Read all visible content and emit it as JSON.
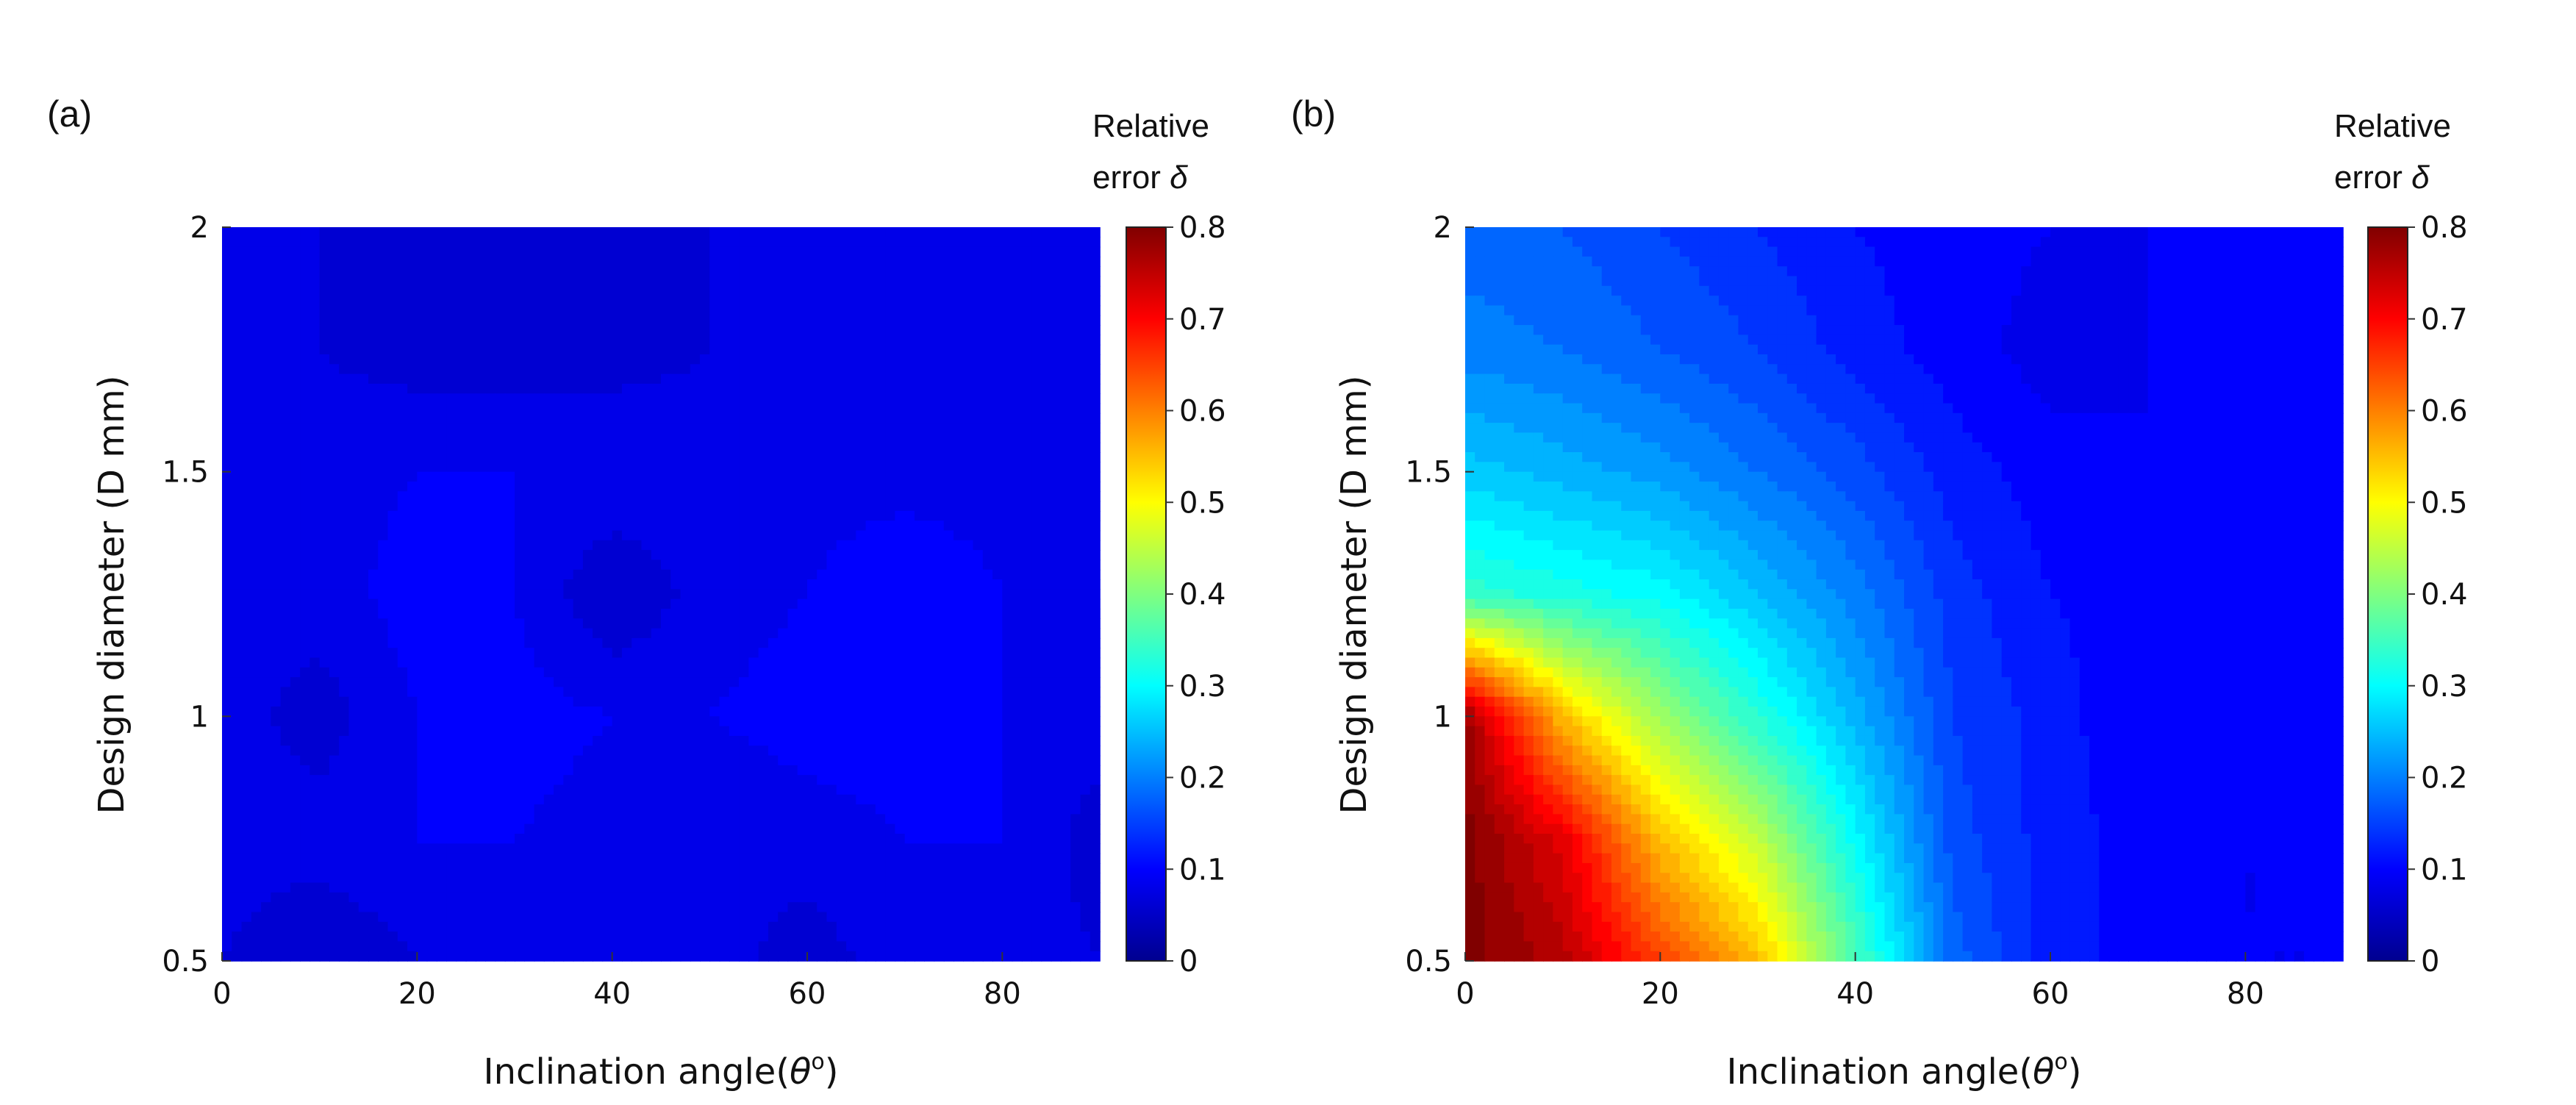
{
  "figure": {
    "colorbar_title_line1": "Relative",
    "colorbar_title_line2": "error ",
    "colorbar_title_symbol": "δ",
    "xlabel_prefix": "Inclination angle(",
    "xlabel_symbol": "θ",
    "xlabel_sup": "o",
    "xlabel_suffix": ")",
    "ylabel": "Design diameter (D mm)"
  },
  "chart_data": [
    {
      "type": "heatmap",
      "panel_label": "(a)",
      "title": "",
      "xlabel": "Inclination angle(θ°)",
      "ylabel": "Design diameter (D mm)",
      "xlim": [
        0,
        90
      ],
      "ylim": [
        0.5,
        2
      ],
      "x_ticks": [
        0,
        20,
        40,
        60,
        80
      ],
      "y_ticks": [
        0.5,
        1,
        1.5,
        2
      ],
      "x_tick_labels": [
        "0",
        "20",
        "40",
        "60",
        "80"
      ],
      "y_tick_labels": [
        "0.5",
        "1",
        "1.5",
        "2"
      ],
      "colorbar": {
        "title": "Relative error δ",
        "range": [
          0,
          0.8
        ],
        "ticks": [
          "0",
          "0.1",
          "0.2",
          "0.3",
          "0.4",
          "0.5",
          "0.6",
          "0.7",
          "0.8"
        ],
        "colormap": "jet"
      },
      "x": [
        0,
        10,
        20,
        30,
        40,
        50,
        60,
        70,
        80,
        90
      ],
      "y": [
        0.5,
        0.75,
        1.0,
        1.25,
        1.5,
        1.75,
        2.0
      ],
      "z": [
        [
          0.07,
          0.05,
          0.07,
          0.08,
          0.07,
          0.08,
          0.06,
          0.08,
          0.08,
          0.07
        ],
        [
          0.08,
          0.08,
          0.09,
          0.09,
          0.08,
          0.07,
          0.08,
          0.09,
          0.09,
          0.06
        ],
        [
          0.08,
          0.06,
          0.09,
          0.1,
          0.09,
          0.09,
          0.1,
          0.1,
          0.09,
          0.08
        ],
        [
          0.08,
          0.08,
          0.1,
          0.09,
          0.05,
          0.08,
          0.09,
          0.11,
          0.09,
          0.08
        ],
        [
          0.08,
          0.08,
          0.09,
          0.09,
          0.09,
          0.08,
          0.08,
          0.08,
          0.08,
          0.08
        ],
        [
          0.08,
          0.07,
          0.06,
          0.06,
          0.06,
          0.07,
          0.08,
          0.08,
          0.08,
          0.08
        ],
        [
          0.07,
          0.07,
          0.07,
          0.07,
          0.07,
          0.07,
          0.07,
          0.07,
          0.07,
          0.07
        ]
      ]
    },
    {
      "type": "heatmap",
      "panel_label": "(b)",
      "title": "",
      "xlabel": "Inclination angle(θ°)",
      "ylabel": "Design diameter (D mm)",
      "xlim": [
        0,
        90
      ],
      "ylim": [
        0.5,
        2
      ],
      "x_ticks": [
        0,
        20,
        40,
        60,
        80
      ],
      "y_ticks": [
        0.5,
        1,
        1.5,
        2
      ],
      "x_tick_labels": [
        "0",
        "20",
        "40",
        "60",
        "80"
      ],
      "y_tick_labels": [
        "0.5",
        "1",
        "1.5",
        "2"
      ],
      "colorbar": {
        "title": "Relative error δ",
        "range": [
          0,
          0.8
        ],
        "ticks": [
          "0",
          "0.1",
          "0.2",
          "0.3",
          "0.4",
          "0.5",
          "0.6",
          "0.7",
          "0.8"
        ],
        "colormap": "jet"
      },
      "x": [
        0,
        10,
        20,
        30,
        40,
        50,
        60,
        70,
        80,
        90
      ],
      "y": [
        0.5,
        0.75,
        1.0,
        1.25,
        1.5,
        1.75,
        2.0
      ],
      "z": [
        [
          0.8,
          0.76,
          0.65,
          0.55,
          0.36,
          0.18,
          0.12,
          0.1,
          0.09,
          0.09
        ],
        [
          0.8,
          0.72,
          0.55,
          0.45,
          0.3,
          0.16,
          0.12,
          0.1,
          0.09,
          0.09
        ],
        [
          0.78,
          0.55,
          0.42,
          0.33,
          0.24,
          0.15,
          0.12,
          0.09,
          0.1,
          0.1
        ],
        [
          0.34,
          0.32,
          0.3,
          0.25,
          0.2,
          0.14,
          0.11,
          0.1,
          0.1,
          0.11
        ],
        [
          0.26,
          0.24,
          0.22,
          0.19,
          0.16,
          0.12,
          0.1,
          0.09,
          0.1,
          0.11
        ],
        [
          0.2,
          0.19,
          0.17,
          0.15,
          0.12,
          0.1,
          0.08,
          0.09,
          0.1,
          0.1
        ],
        [
          0.18,
          0.17,
          0.15,
          0.13,
          0.11,
          0.1,
          0.09,
          0.09,
          0.1,
          0.1
        ]
      ]
    }
  ]
}
